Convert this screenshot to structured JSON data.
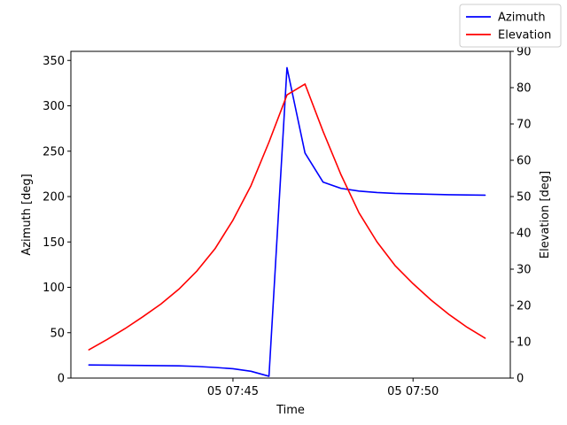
{
  "chart_data": {
    "type": "line",
    "xlabel": "Time",
    "ylabel_left": "Azimuth [deg]",
    "ylabel_right": "Elevation [deg]",
    "x_ticks": [
      {
        "label": "05 07:45",
        "minute": 45
      },
      {
        "label": "05 07:50",
        "minute": 50
      }
    ],
    "xlim_minutes": [
      40.5,
      52.7
    ],
    "ylim_left": [
      0,
      360
    ],
    "ylim_right": [
      0,
      90
    ],
    "yticks_left": [
      0,
      50,
      100,
      150,
      200,
      250,
      300,
      350
    ],
    "yticks_right": [
      0,
      10,
      20,
      30,
      40,
      50,
      60,
      70,
      80,
      90
    ],
    "legend": {
      "placement": "top-right",
      "entries": [
        "Azimuth",
        "Elevation"
      ]
    },
    "grid": false,
    "series": [
      {
        "name": "Azimuth",
        "axis": "left",
        "color": "#0000ff",
        "x_minutes": [
          41.0,
          43.5,
          44.0,
          44.5,
          45.0,
          45.5,
          46.0,
          46.5,
          47.0,
          47.5,
          48.0,
          48.5,
          49.0,
          49.5,
          50.0,
          50.5,
          51.0,
          51.5,
          52.0
        ],
        "values": [
          14.5,
          13.5,
          12.8,
          11.7,
          10.3,
          7.5,
          2.0,
          342,
          248,
          216,
          209,
          206,
          204.5,
          203.5,
          203,
          202.5,
          202,
          201.8,
          201.5
        ]
      },
      {
        "name": "Elevation",
        "axis": "right",
        "color": "#ff0000",
        "x_minutes": [
          41.0,
          41.5,
          42.0,
          42.5,
          43.0,
          43.5,
          44.0,
          44.5,
          45.0,
          45.5,
          46.0,
          46.5,
          47.0,
          47.5,
          48.0,
          48.5,
          49.0,
          49.5,
          50.0,
          50.5,
          51.0,
          51.5,
          52.0
        ],
        "values": [
          7.8,
          10.6,
          13.6,
          16.9,
          20.4,
          24.5,
          29.5,
          35.6,
          43.5,
          53.0,
          65.0,
          78.0,
          81.0,
          68.0,
          56.0,
          45.5,
          37.5,
          31.0,
          26.0,
          21.5,
          17.5,
          14.0,
          11.0
        ]
      }
    ]
  }
}
